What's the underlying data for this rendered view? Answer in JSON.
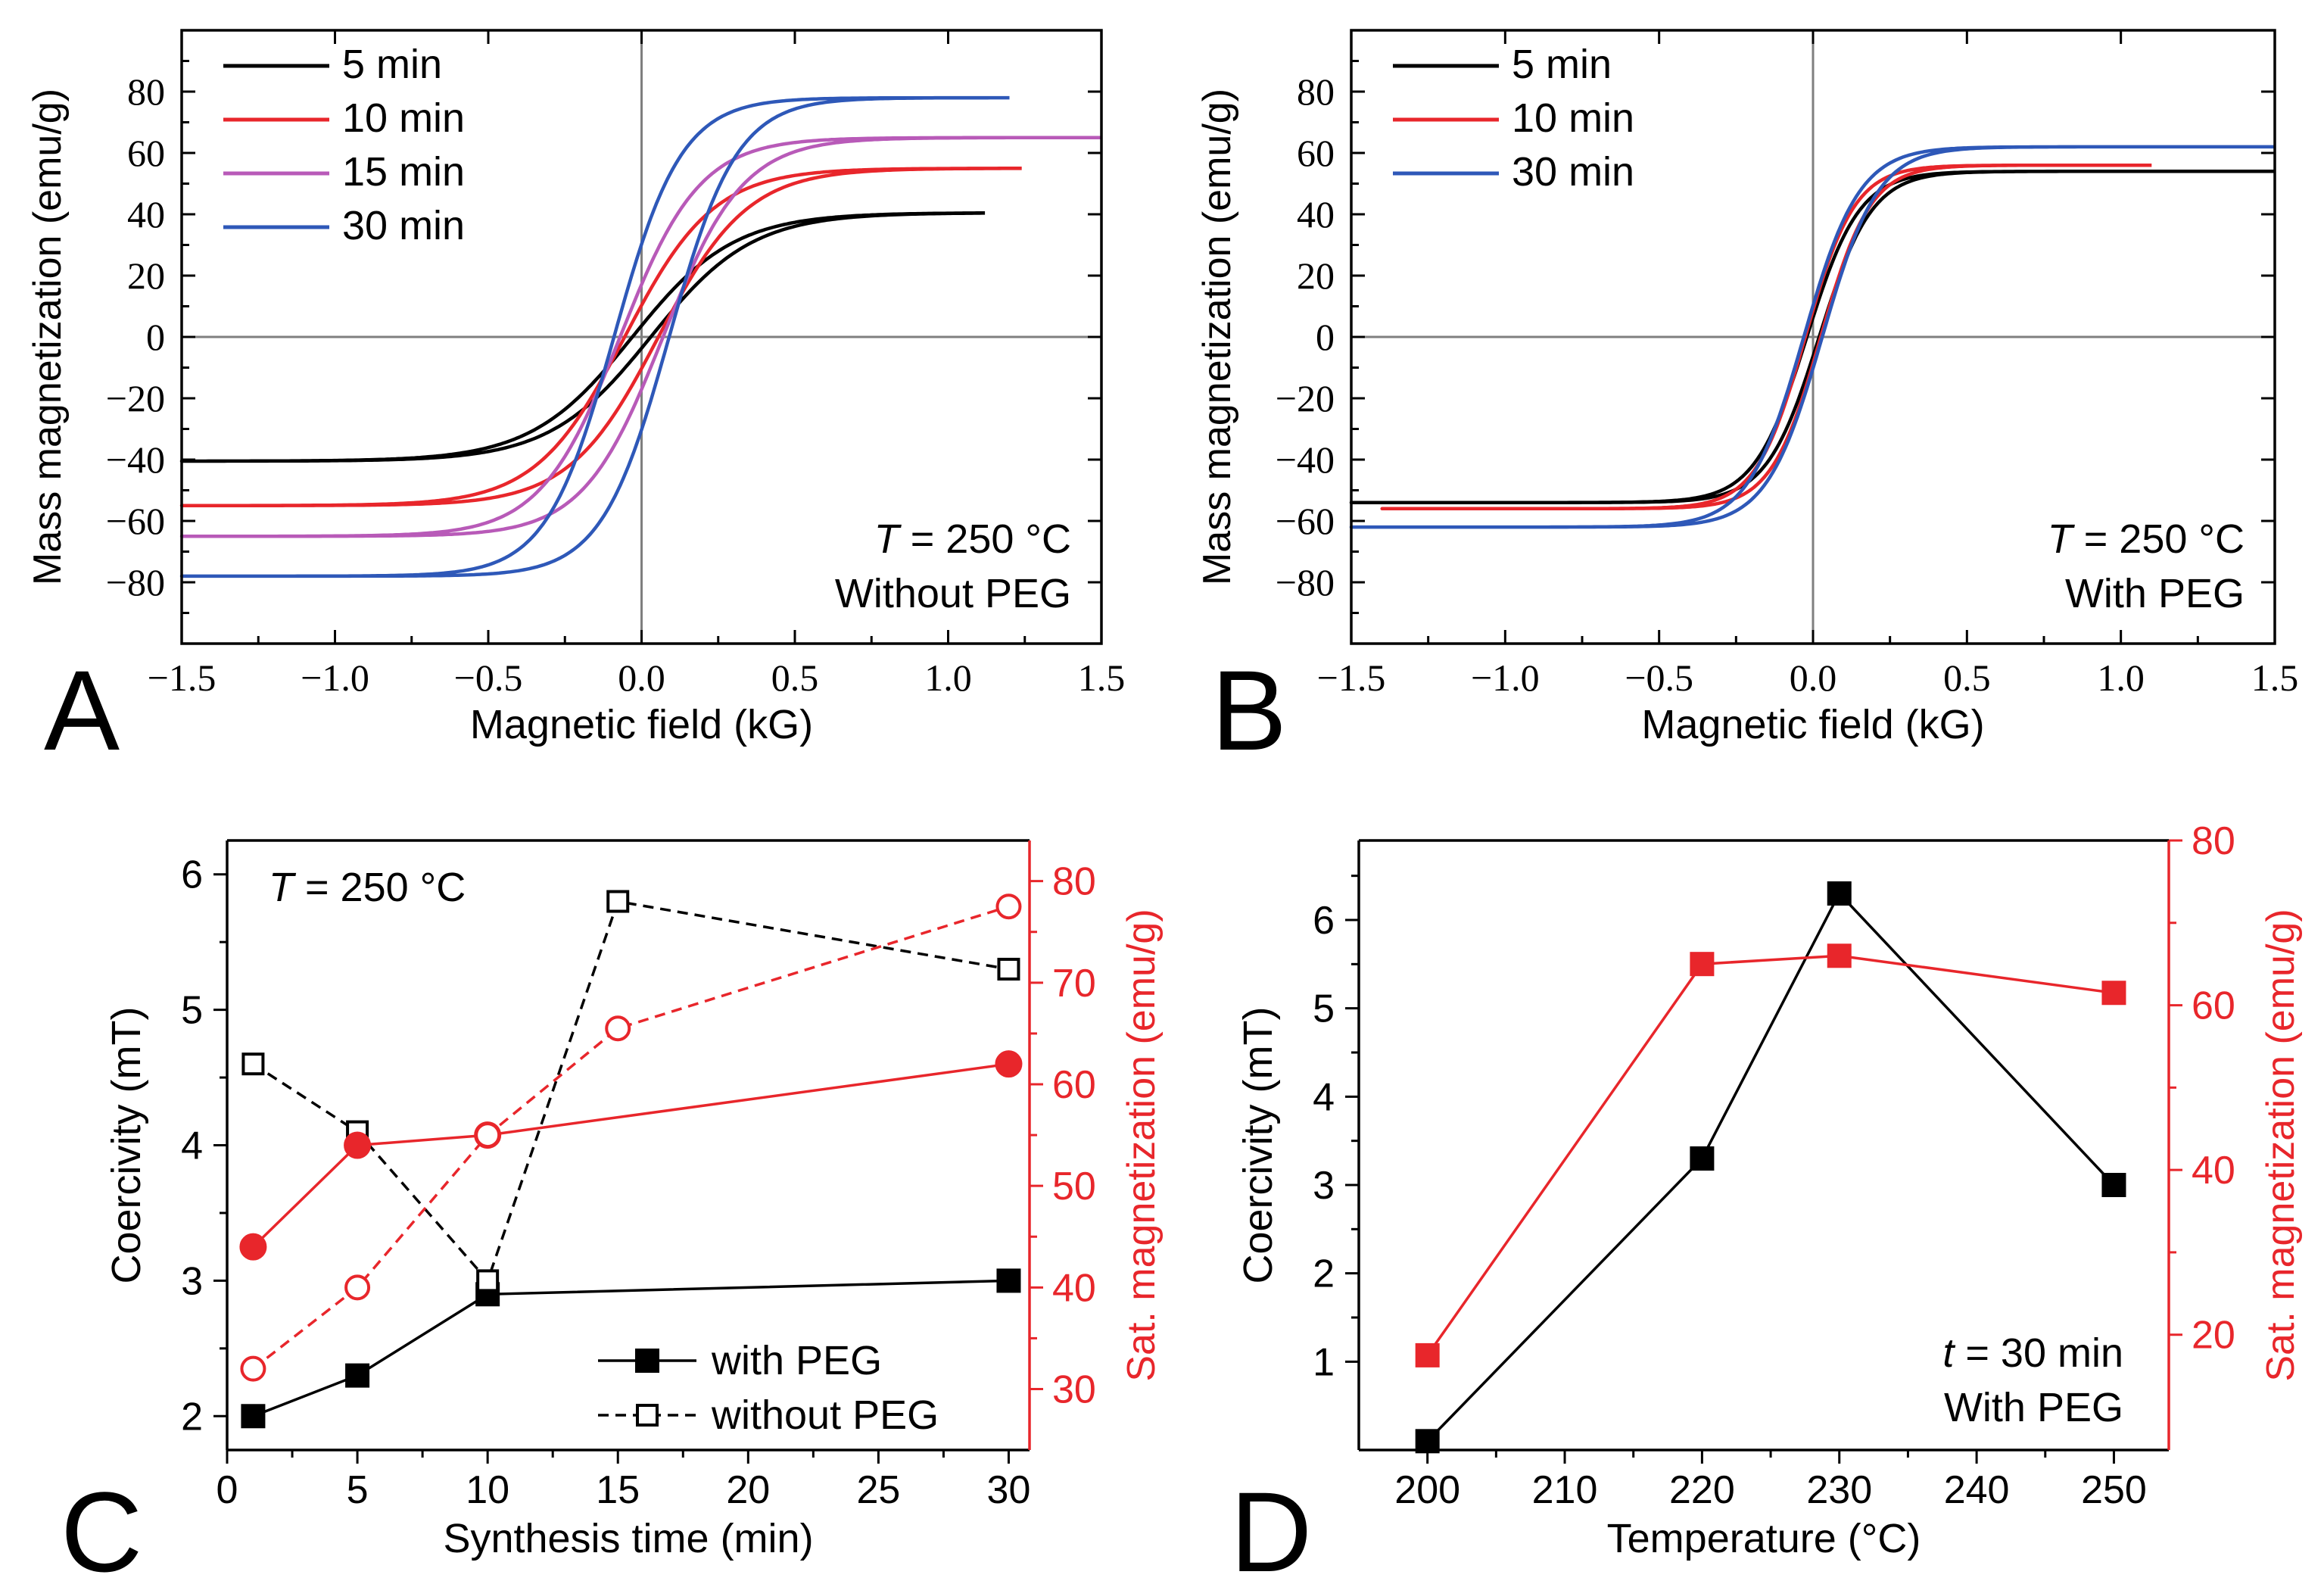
{
  "colors": {
    "black": "#000000",
    "red": "#e8262b",
    "magenta": "#b85ab8",
    "blue": "#2e58b8",
    "zero_line": "#7f7f7f"
  },
  "chart_data": [
    {
      "panel": "A",
      "type": "line",
      "subtype": "hysteresis",
      "xlabel": "Magnetic field (kG)",
      "ylabel": "Mass magnetization (emu/g)",
      "xlim": [
        -1.5,
        1.5
      ],
      "ylim": [
        -100,
        100
      ],
      "xticks": [
        -1.5,
        -1.0,
        -0.5,
        0.0,
        0.5,
        1.0,
        1.5
      ],
      "xtick_labels": [
        "−1.5",
        "−1.0",
        "−0.5",
        "0.0",
        "0.5",
        "1.0",
        "1.5"
      ],
      "yticks": [
        -80,
        -60,
        -40,
        -20,
        0,
        20,
        40,
        60,
        80
      ],
      "ytick_labels": [
        "−80",
        "−60",
        "−40",
        "−20",
        "0",
        "20",
        "40",
        "60",
        "80"
      ],
      "annotation": {
        "prefix": "T",
        "text": " = 250 °C",
        "line2": "Without PEG"
      },
      "legend_position": "top-left",
      "series": [
        {
          "name": "5 min",
          "color": "#000000",
          "ms": 40.5,
          "hc": 0.03,
          "w": 0.33,
          "xmax": 1.12,
          "xmin": -1.5
        },
        {
          "name": "10 min",
          "color": "#e8262b",
          "ms": 55,
          "hc": 0.055,
          "w": 0.29,
          "xmax": 1.24,
          "xmin": -1.5
        },
        {
          "name": "15 min",
          "color": "#b85ab8",
          "ms": 65,
          "hc": 0.07,
          "w": 0.26,
          "xmax": 1.5,
          "xmin": -1.5
        },
        {
          "name": "30 min",
          "color": "#2e58b8",
          "ms": 78,
          "hc": 0.09,
          "w": 0.22,
          "xmax": 1.2,
          "xmin": -1.5
        }
      ]
    },
    {
      "panel": "B",
      "type": "line",
      "subtype": "hysteresis",
      "xlabel": "Magnetic field (kG)",
      "ylabel": "Mass magnetization (emu/g)",
      "xlim": [
        -1.5,
        1.5
      ],
      "ylim": [
        -100,
        100
      ],
      "xticks": [
        -1.5,
        -1.0,
        -0.5,
        0.0,
        0.5,
        1.0,
        1.5
      ],
      "xtick_labels": [
        "−1.5",
        "−1.0",
        "−0.5",
        "0.0",
        "0.5",
        "1.0",
        "1.5"
      ],
      "yticks": [
        -80,
        -60,
        -40,
        -20,
        0,
        20,
        40,
        60,
        80
      ],
      "ytick_labels": [
        "−80",
        "−60",
        "−40",
        "−20",
        "0",
        "20",
        "40",
        "60",
        "80"
      ],
      "annotation": {
        "prefix": "T",
        "text": " = 250 °C",
        "line2": "With PEG"
      },
      "legend_position": "top-left",
      "series": [
        {
          "name": "5 min",
          "color": "#000000",
          "ms": 54,
          "hc": 0.02,
          "w": 0.17,
          "xmax": 1.5,
          "xmin": -1.5
        },
        {
          "name": "10 min",
          "color": "#e8262b",
          "ms": 56,
          "hc": 0.025,
          "w": 0.16,
          "xmax": 1.1,
          "xmin": -1.4
        },
        {
          "name": "30 min",
          "color": "#2e58b8",
          "ms": 62,
          "hc": 0.03,
          "w": 0.18,
          "xmax": 1.5,
          "xmin": -1.5
        }
      ]
    },
    {
      "panel": "C",
      "type": "scatter",
      "subtype": "dual-axis line-marker",
      "xlabel": "Synthesis time (min)",
      "ylabel": "Coercivity (mT)",
      "y2label": "Sat. magnetization (emu/g)",
      "xlim": [
        0,
        30.8
      ],
      "ylim": [
        1.75,
        6.25
      ],
      "y2lim": [
        24,
        84
      ],
      "xticks": [
        0,
        5,
        10,
        15,
        20,
        25,
        30
      ],
      "xtick_labels": [
        "0",
        "5",
        "10",
        "15",
        "20",
        "25",
        "30"
      ],
      "yticks": [
        2,
        3,
        4,
        5,
        6
      ],
      "ytick_labels": [
        "2",
        "3",
        "4",
        "5",
        "6"
      ],
      "y2ticks": [
        30,
        40,
        50,
        60,
        70,
        80
      ],
      "y2tick_labels": [
        "30",
        "40",
        "50",
        "60",
        "70",
        "80"
      ],
      "annotation": {
        "prefix": "T",
        "text": " = 250 °C"
      },
      "legend": [
        "with PEG",
        "without PEG"
      ],
      "legend_position": "bottom-right",
      "series": [
        {
          "name": "with PEG",
          "axis": "left",
          "marker": "square-filled",
          "dash": false,
          "color": "#000000",
          "x": [
            1,
            5,
            10,
            30
          ],
          "y": [
            2.0,
            2.3,
            2.9,
            3.0
          ]
        },
        {
          "name": "without PEG",
          "axis": "left",
          "marker": "square-open",
          "dash": true,
          "color": "#000000",
          "x": [
            1,
            5,
            10,
            15,
            30
          ],
          "y": [
            4.6,
            4.1,
            3.0,
            5.8,
            5.3
          ]
        },
        {
          "name": "Sat. magnetization with PEG",
          "axis": "right",
          "marker": "circle-filled",
          "dash": false,
          "color": "#e8262b",
          "x": [
            1,
            5,
            10,
            30
          ],
          "y": [
            44,
            54,
            55,
            62
          ]
        },
        {
          "name": "Sat. magnetization without PEG",
          "axis": "right",
          "marker": "circle-open",
          "dash": true,
          "color": "#e8262b",
          "x": [
            1,
            5,
            10,
            15,
            30
          ],
          "y": [
            32,
            40,
            55,
            65.5,
            77.5
          ]
        }
      ]
    },
    {
      "panel": "D",
      "type": "scatter",
      "subtype": "dual-axis line-marker",
      "xlabel": "Temperature (°C)",
      "ylabel": "Coercivity (mT)",
      "y2label": "Sat. magnetization (emu/g)",
      "xlim": [
        195,
        254
      ],
      "ylim": [
        0,
        6.9
      ],
      "y2lim": [
        6,
        80
      ],
      "xticks": [
        200,
        210,
        220,
        230,
        240,
        250
      ],
      "xtick_labels": [
        "200",
        "210",
        "220",
        "230",
        "240",
        "250"
      ],
      "yticks": [
        1,
        2,
        3,
        4,
        5,
        6
      ],
      "ytick_labels": [
        "1",
        "2",
        "3",
        "4",
        "5",
        "6"
      ],
      "y2ticks": [
        20,
        40,
        60,
        80
      ],
      "y2tick_labels": [
        "20",
        "40",
        "60",
        "80"
      ],
      "annotation": {
        "prefix": "t",
        "text": " = 30 min",
        "line2": "With PEG"
      },
      "series": [
        {
          "name": "Coercivity",
          "axis": "left",
          "marker": "square-filled",
          "dash": false,
          "color": "#000000",
          "x": [
            200,
            220,
            230,
            250
          ],
          "y": [
            0.1,
            3.3,
            6.3,
            3.0
          ]
        },
        {
          "name": "Sat. magnetization",
          "axis": "right",
          "marker": "square-filled",
          "dash": false,
          "color": "#e8262b",
          "x": [
            200,
            220,
            230,
            250
          ],
          "y": [
            17.5,
            65,
            66,
            61.5
          ]
        }
      ]
    }
  ]
}
